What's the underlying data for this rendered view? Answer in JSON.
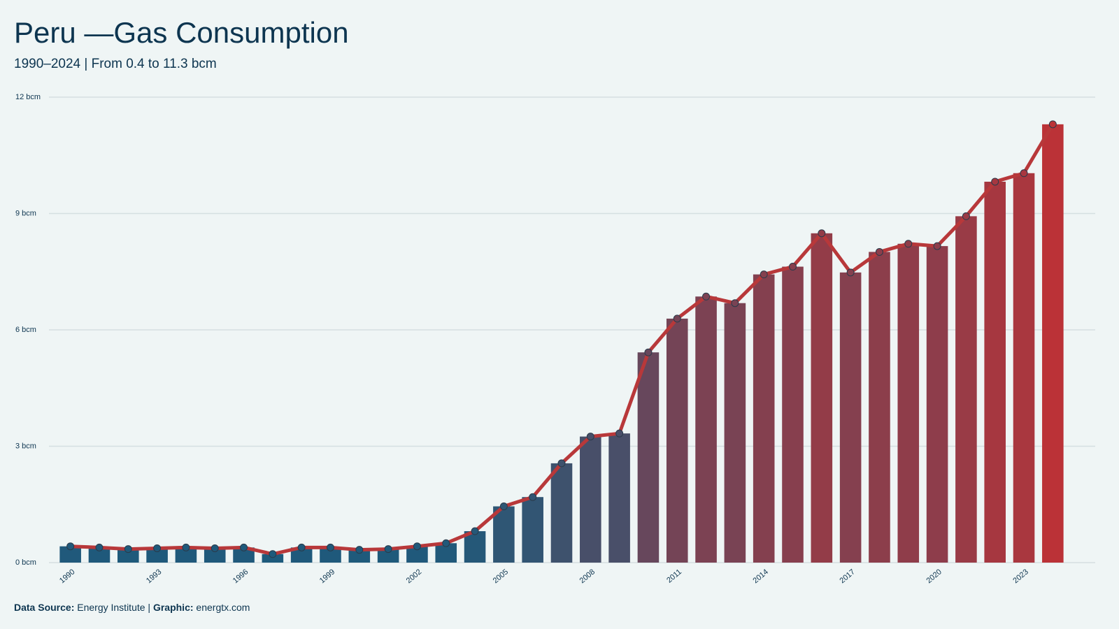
{
  "chart_data": {
    "type": "bar_line",
    "title": "Peru —Gas Consumption",
    "subtitle": "1990–2024 | From 0.4 to 11.3 bcm",
    "source_label": "Data Source:",
    "source": "Energy Institute |",
    "graphic_label": "Graphic:",
    "graphic": "energtx.com",
    "x": [
      1990,
      1991,
      1992,
      1993,
      1994,
      1995,
      1996,
      1997,
      1998,
      1999,
      2000,
      2001,
      2002,
      2003,
      2004,
      2005,
      2006,
      2007,
      2008,
      2009,
      2010,
      2011,
      2012,
      2013,
      2014,
      2015,
      2016,
      2017,
      2018,
      2019,
      2020,
      2021,
      2022,
      2023,
      2024
    ],
    "values": [
      0.42,
      0.39,
      0.35,
      0.37,
      0.39,
      0.37,
      0.39,
      0.22,
      0.39,
      0.39,
      0.33,
      0.35,
      0.42,
      0.5,
      0.81,
      1.45,
      1.69,
      2.56,
      3.25,
      3.33,
      5.42,
      6.29,
      6.86,
      6.69,
      7.43,
      7.63,
      8.49,
      7.48,
      8.01,
      8.22,
      8.16,
      8.93,
      9.82,
      10.04,
      11.3
    ],
    "xlim": [
      1989.5,
      2024.5
    ],
    "xticks": [
      1990,
      1993,
      1996,
      1999,
      2002,
      2005,
      2008,
      2011,
      2014,
      2017,
      2020,
      2023
    ],
    "ylim": [
      0,
      12
    ],
    "yticks": [
      {
        "value": 0,
        "label": "0 bcm"
      },
      {
        "value": 3,
        "label": "3 bcm"
      },
      {
        "value": 6,
        "label": "6 bcm"
      },
      {
        "value": 9,
        "label": "9 bcm"
      },
      {
        "value": 12,
        "label": "12 bcm"
      }
    ],
    "grid": true,
    "bar_color_low": "#1d5a7c",
    "bar_color_high": "#bb3237",
    "line_color": "#b8383a"
  }
}
